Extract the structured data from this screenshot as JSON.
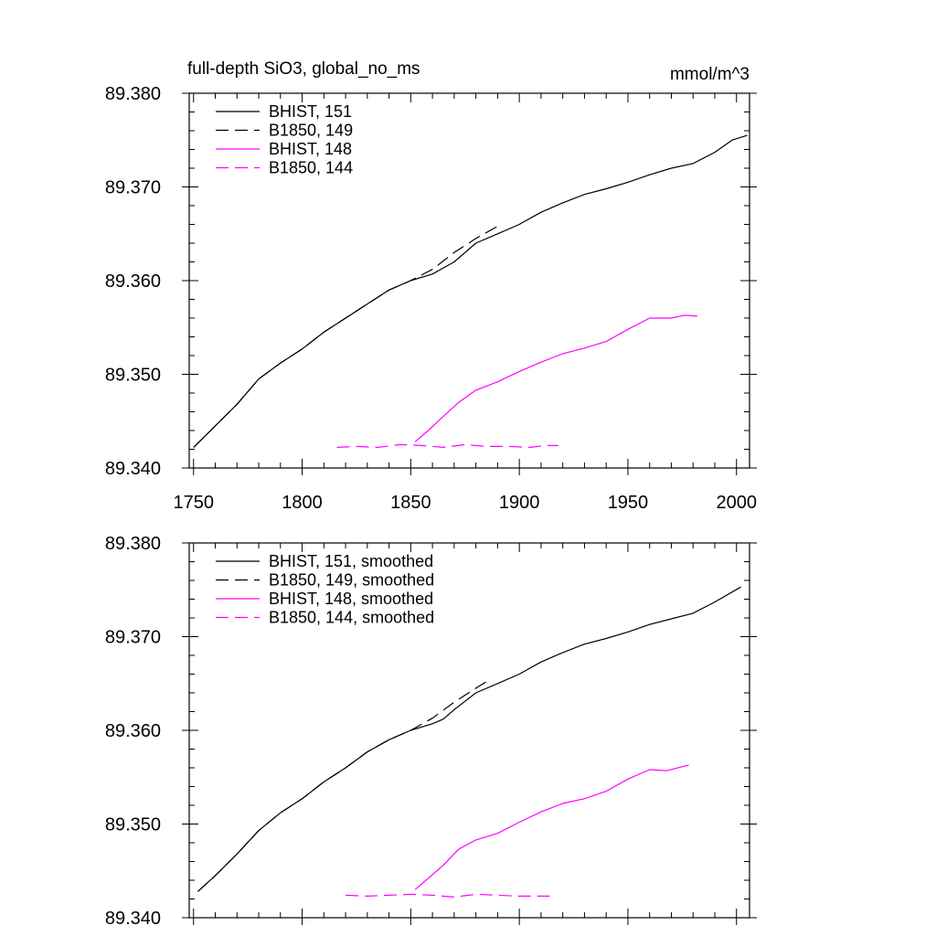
{
  "chart_data": [
    {
      "type": "line",
      "title": "full-depth SiO3, global_no_ms",
      "units": "mmol/m^3",
      "xlabel": "",
      "ylabel": "",
      "xlim": [
        1748,
        2006
      ],
      "ylim": [
        89.34,
        89.38
      ],
      "xticks": [
        1750,
        1800,
        1850,
        1900,
        1950,
        2000
      ],
      "xtick_labels": [
        "1750",
        "1800",
        "1850",
        "1900",
        "1950",
        "2000"
      ],
      "yticks": [
        89.34,
        89.35,
        89.36,
        89.37,
        89.38
      ],
      "ytick_labels": [
        "89.340",
        "89.350",
        "89.360",
        "89.370",
        "89.380"
      ],
      "grid": false,
      "legend_position": "top-left",
      "series": [
        {
          "name": "BHIST, 151",
          "color": "#000000",
          "dash": "solid",
          "points": [
            [
              1750,
              89.3422
            ],
            [
              1760,
              89.3445
            ],
            [
              1770,
              89.3468
            ],
            [
              1780,
              89.3495
            ],
            [
              1790,
              89.3512
            ],
            [
              1800,
              89.3527
            ],
            [
              1810,
              89.3545
            ],
            [
              1820,
              89.356
            ],
            [
              1830,
              89.3575
            ],
            [
              1840,
              89.359
            ],
            [
              1850,
              89.36
            ],
            [
              1860,
              89.3607
            ],
            [
              1870,
              89.362
            ],
            [
              1880,
              89.364
            ],
            [
              1890,
              89.365
            ],
            [
              1900,
              89.366
            ],
            [
              1910,
              89.3673
            ],
            [
              1920,
              89.3683
            ],
            [
              1930,
              89.3692
            ],
            [
              1940,
              89.3698
            ],
            [
              1950,
              89.3705
            ],
            [
              1960,
              89.3713
            ],
            [
              1970,
              89.372
            ],
            [
              1980,
              89.3725
            ],
            [
              1990,
              89.3737
            ],
            [
              1998,
              89.375
            ],
            [
              2005,
              89.3755
            ]
          ]
        },
        {
          "name": "B1850, 149",
          "color": "#000000",
          "dash": "dashed",
          "points": [
            [
              1750,
              89.3422
            ],
            [
              1760,
              89.3445
            ],
            [
              1770,
              89.3468
            ],
            [
              1780,
              89.3495
            ],
            [
              1790,
              89.3512
            ],
            [
              1800,
              89.3527
            ],
            [
              1810,
              89.3545
            ],
            [
              1820,
              89.356
            ],
            [
              1830,
              89.3575
            ],
            [
              1840,
              89.359
            ],
            [
              1850,
              89.36
            ],
            [
              1860,
              89.3612
            ],
            [
              1870,
              89.363
            ],
            [
              1880,
              89.3645
            ],
            [
              1890,
              89.3658
            ]
          ]
        },
        {
          "name": "BHIST, 148",
          "color": "#ff00ff",
          "dash": "solid",
          "points": [
            [
              1852,
              89.3428
            ],
            [
              1858,
              89.344
            ],
            [
              1865,
              89.3455
            ],
            [
              1872,
              89.347
            ],
            [
              1880,
              89.3483
            ],
            [
              1890,
              89.3492
            ],
            [
              1900,
              89.3503
            ],
            [
              1910,
              89.3513
            ],
            [
              1920,
              89.3522
            ],
            [
              1930,
              89.3528
            ],
            [
              1940,
              89.3535
            ],
            [
              1950,
              89.3548
            ],
            [
              1960,
              89.356
            ],
            [
              1970,
              89.356
            ],
            [
              1976,
              89.3563
            ],
            [
              1982,
              89.3562
            ]
          ]
        },
        {
          "name": "B1850, 144",
          "color": "#ff00ff",
          "dash": "dashed",
          "points": [
            [
              1816,
              89.3422
            ],
            [
              1825,
              89.3423
            ],
            [
              1835,
              89.3422
            ],
            [
              1845,
              89.3425
            ],
            [
              1855,
              89.3424
            ],
            [
              1865,
              89.3422
            ],
            [
              1875,
              89.3425
            ],
            [
              1885,
              89.3423
            ],
            [
              1895,
              89.3423
            ],
            [
              1905,
              89.3422
            ],
            [
              1912,
              89.3424
            ],
            [
              1918,
              89.3424
            ]
          ]
        }
      ]
    },
    {
      "type": "line",
      "title": "",
      "units": "",
      "xlabel": "",
      "ylabel": "",
      "xlim": [
        1748,
        2006
      ],
      "ylim": [
        89.34,
        89.38
      ],
      "xticks": [
        1750,
        1800,
        1850,
        1900,
        1950,
        2000
      ],
      "xtick_labels": [],
      "yticks": [
        89.34,
        89.35,
        89.36,
        89.37,
        89.38
      ],
      "ytick_labels": [
        "89.340",
        "89.350",
        "89.360",
        "89.370",
        "89.380"
      ],
      "grid": false,
      "legend_position": "top-left",
      "series": [
        {
          "name": "BHIST, 151, smoothed",
          "color": "#000000",
          "dash": "solid",
          "points": [
            [
              1752,
              89.3428
            ],
            [
              1760,
              89.3445
            ],
            [
              1770,
              89.3468
            ],
            [
              1780,
              89.3493
            ],
            [
              1790,
              89.3512
            ],
            [
              1800,
              89.3527
            ],
            [
              1810,
              89.3545
            ],
            [
              1820,
              89.356
            ],
            [
              1830,
              89.3577
            ],
            [
              1840,
              89.359
            ],
            [
              1850,
              89.36
            ],
            [
              1860,
              89.3607
            ],
            [
              1865,
              89.3612
            ],
            [
              1870,
              89.3622
            ],
            [
              1880,
              89.364
            ],
            [
              1890,
              89.365
            ],
            [
              1900,
              89.366
            ],
            [
              1910,
              89.3673
            ],
            [
              1920,
              89.3683
            ],
            [
              1930,
              89.3692
            ],
            [
              1940,
              89.3698
            ],
            [
              1950,
              89.3705
            ],
            [
              1960,
              89.3713
            ],
            [
              1970,
              89.3719
            ],
            [
              1980,
              89.3725
            ],
            [
              1990,
              89.3737
            ],
            [
              2002,
              89.3753
            ]
          ]
        },
        {
          "name": "B1850, 149, smoothed",
          "color": "#000000",
          "dash": "dashed",
          "points": [
            [
              1752,
              89.3428
            ],
            [
              1760,
              89.3445
            ],
            [
              1770,
              89.3468
            ],
            [
              1780,
              89.3493
            ],
            [
              1790,
              89.3512
            ],
            [
              1800,
              89.3527
            ],
            [
              1810,
              89.3545
            ],
            [
              1820,
              89.356
            ],
            [
              1830,
              89.3577
            ],
            [
              1840,
              89.359
            ],
            [
              1850,
              89.36
            ],
            [
              1860,
              89.3613
            ],
            [
              1870,
              89.363
            ],
            [
              1880,
              89.3645
            ],
            [
              1887,
              89.3655
            ]
          ]
        },
        {
          "name": "BHIST, 148, smoothed",
          "color": "#ff00ff",
          "dash": "solid",
          "points": [
            [
              1852,
              89.343
            ],
            [
              1858,
              89.3442
            ],
            [
              1865,
              89.3456
            ],
            [
              1872,
              89.3473
            ],
            [
              1880,
              89.3483
            ],
            [
              1890,
              89.349
            ],
            [
              1900,
              89.3502
            ],
            [
              1910,
              89.3513
            ],
            [
              1920,
              89.3522
            ],
            [
              1930,
              89.3527
            ],
            [
              1940,
              89.3535
            ],
            [
              1950,
              89.3548
            ],
            [
              1960,
              89.3558
            ],
            [
              1968,
              89.3557
            ],
            [
              1978,
              89.3563
            ]
          ]
        },
        {
          "name": "B1850, 144, smoothed",
          "color": "#ff00ff",
          "dash": "dashed",
          "points": [
            [
              1820,
              89.3424
            ],
            [
              1830,
              89.3423
            ],
            [
              1840,
              89.3424
            ],
            [
              1850,
              89.3425
            ],
            [
              1860,
              89.3424
            ],
            [
              1870,
              89.3422
            ],
            [
              1880,
              89.3425
            ],
            [
              1890,
              89.3424
            ],
            [
              1900,
              89.3423
            ],
            [
              1910,
              89.3423
            ],
            [
              1914,
              89.3423
            ]
          ]
        }
      ]
    }
  ]
}
